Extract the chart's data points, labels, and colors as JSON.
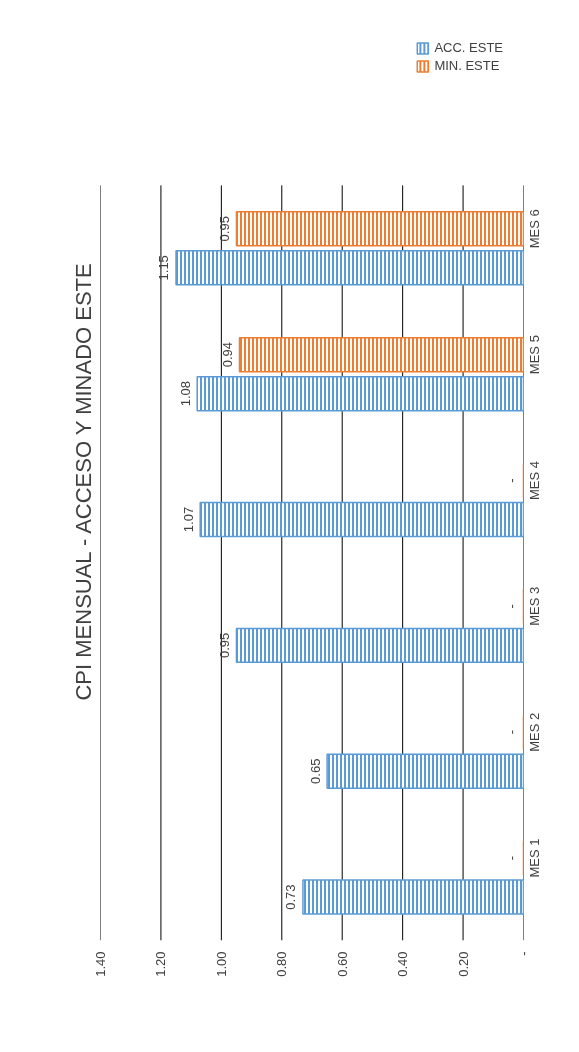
{
  "chart_data": {
    "type": "bar",
    "orientation": "horizontal",
    "title": "CPI MENSUAL - ACCESO Y MINADO ESTE",
    "categories": [
      "MES 6",
      "MES 5",
      "MES 4",
      "MES 3",
      "MES 2",
      "MES 1"
    ],
    "series": [
      {
        "name": "ACC. ESTE",
        "color": "#5b9bd5",
        "values": [
          1.15,
          1.08,
          1.07,
          0.95,
          0.65,
          0.73
        ],
        "value_labels": [
          "1.15",
          "1.08",
          "1.07",
          "0.95",
          "0.65",
          "0.73"
        ]
      },
      {
        "name": "MIN. ESTE",
        "color": "#ed7d31",
        "values": [
          0.95,
          0.94,
          0,
          0,
          0,
          0
        ],
        "value_labels": [
          "0.95",
          "0.94",
          "-",
          "-",
          "-",
          "-"
        ]
      }
    ],
    "xlim": [
      1.4,
      0
    ],
    "xticks": [
      {
        "value": 0,
        "label": "-"
      },
      {
        "value": 0.2,
        "label": "0.20"
      },
      {
        "value": 0.4,
        "label": "0.40"
      },
      {
        "value": 0.6,
        "label": "0.60"
      },
      {
        "value": 0.8,
        "label": "0.80"
      },
      {
        "value": 1.0,
        "label": "1.00"
      },
      {
        "value": 1.2,
        "label": "1.20"
      },
      {
        "value": 1.4,
        "label": "1.40"
      }
    ],
    "grid": "x",
    "legend": "top right"
  }
}
